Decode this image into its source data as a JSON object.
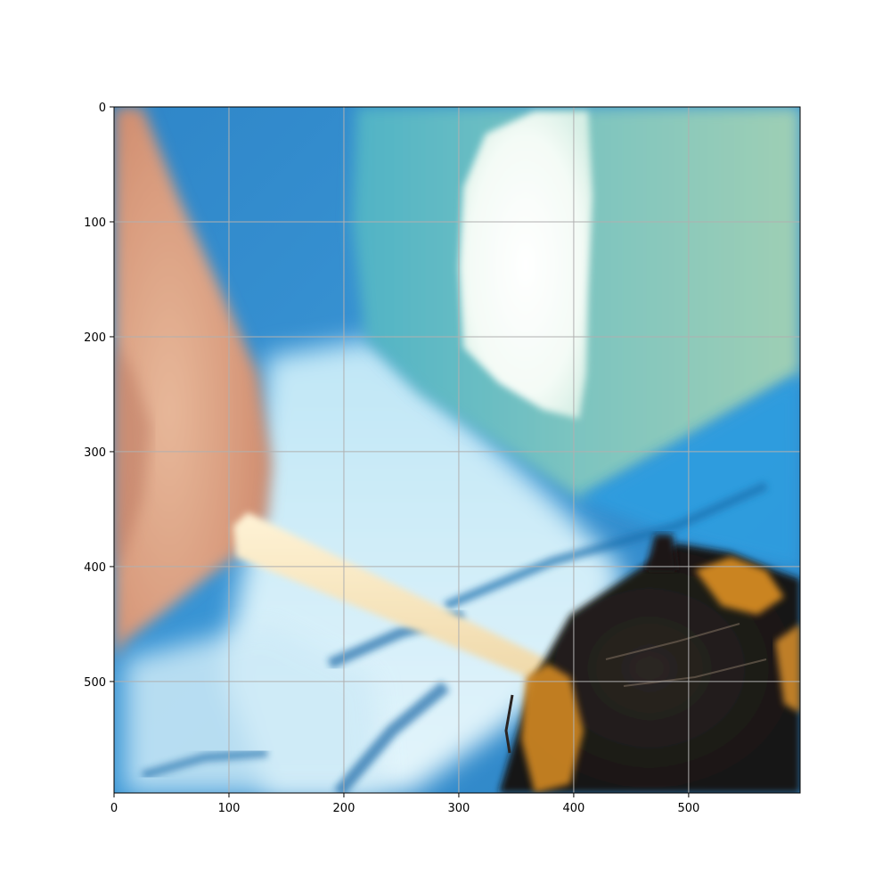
{
  "image": {
    "description_tags": [
      "finger",
      "wooden-stick",
      "bumblebee",
      "blue-tray",
      "water",
      "ice"
    ]
  },
  "axes": {
    "x_range": [
      0,
      597
    ],
    "y_range": [
      0,
      597
    ],
    "x_ticks": [
      {
        "value": 0,
        "label": "0"
      },
      {
        "value": 100,
        "label": "100"
      },
      {
        "value": 200,
        "label": "200"
      },
      {
        "value": 300,
        "label": "300"
      },
      {
        "value": 400,
        "label": "400"
      },
      {
        "value": 500,
        "label": "500"
      }
    ],
    "y_ticks": [
      {
        "value": 0,
        "label": "0"
      },
      {
        "value": 100,
        "label": "100"
      },
      {
        "value": 200,
        "label": "200"
      },
      {
        "value": 300,
        "label": "300"
      },
      {
        "value": 400,
        "label": "400"
      },
      {
        "value": 500,
        "label": "500"
      }
    ],
    "grid": true,
    "grid_color": "#b0b0b0"
  }
}
